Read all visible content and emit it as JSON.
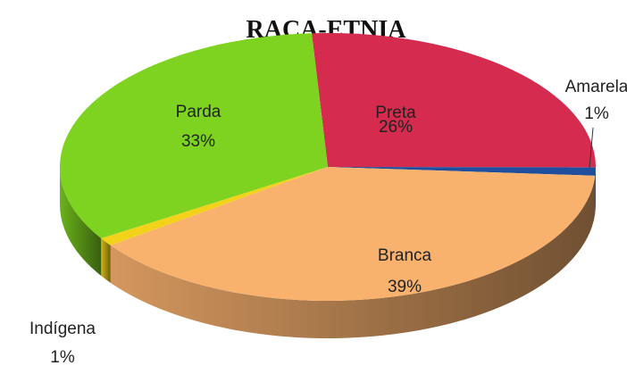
{
  "chart_data": {
    "type": "pie3d",
    "title": "RAÇA-ETNIA",
    "categories": [
      "Preta",
      "Amarela",
      "Branca",
      "Indígena",
      "Parda"
    ],
    "values": [
      26,
      1,
      39,
      1,
      33
    ],
    "value_labels": [
      "26%",
      "1%",
      "39%",
      "1%",
      "33%"
    ],
    "colors": [
      "#d42b4e",
      "#1f4e9c",
      "#f9b26e",
      "#f2d31a",
      "#7ed321"
    ]
  }
}
